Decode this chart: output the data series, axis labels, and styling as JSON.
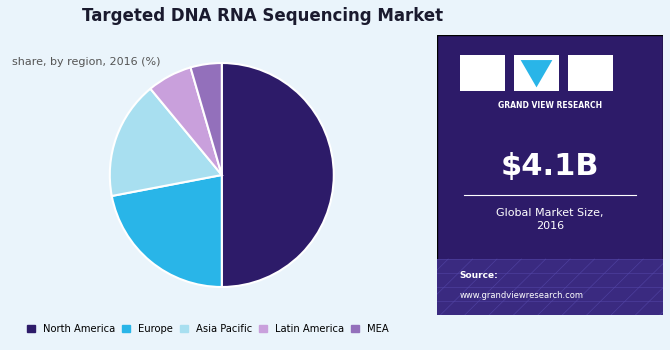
{
  "title": "Targeted DNA RNA Sequencing Market",
  "subtitle": "share, by region, 2016 (%)",
  "slices": [
    50.0,
    22.0,
    17.0,
    6.5,
    4.5
  ],
  "labels": [
    "North America",
    "Europe",
    "Asia Pacific",
    "Latin America",
    "MEA"
  ],
  "colors": [
    "#2d1b69",
    "#29b5e8",
    "#a8dff0",
    "#c9a0dc",
    "#9370bb"
  ],
  "bg_color": "#eaf4fb",
  "right_panel_color": "#2d1b69",
  "market_size": "$4.1B",
  "market_label": "Global Market Size,\n2016",
  "source_label": "Source:",
  "source_url": "www.grandviewresearch.com",
  "legend_labels": [
    "North America",
    "Europe",
    "Asia Pacific",
    "Latin America",
    "MEA"
  ],
  "startangle": 90,
  "gvr_text": "GRAND VIEW RESEARCH",
  "logo_blue": "#29b5e8"
}
